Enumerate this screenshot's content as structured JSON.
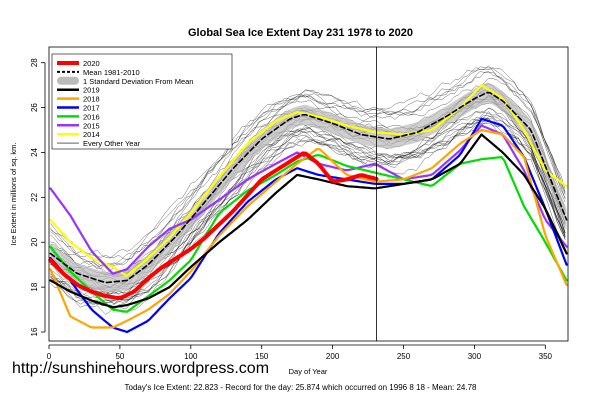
{
  "chart_data": {
    "type": "line",
    "title": "Global Sea Ice Extent Day 231 1978 to 2020",
    "xlabel": "Day of Year",
    "ylabel": "Ice Extent in millions of sq. km.",
    "xlim": [
      0,
      366
    ],
    "ylim": [
      15.6,
      28.7
    ],
    "xticks": [
      0,
      50,
      100,
      150,
      200,
      250,
      300,
      350
    ],
    "yticks": [
      16,
      18,
      20,
      22,
      24,
      26,
      28
    ],
    "marker_day": 231,
    "legend_position": "top-left",
    "legend": [
      {
        "label": "2020",
        "style": "thick-red"
      },
      {
        "label": "Mean 1981-2010",
        "style": "dashed-black"
      },
      {
        "label": "1 Standard Deviation From Mean",
        "style": "gray-band"
      },
      {
        "label": "2019",
        "style": "black"
      },
      {
        "label": "2018",
        "style": "orange"
      },
      {
        "label": "2017",
        "style": "blue"
      },
      {
        "label": "2016",
        "style": "green"
      },
      {
        "label": "2015",
        "style": "purple"
      },
      {
        "label": "2014",
        "style": "yellow"
      },
      {
        "label": "Every Other Year",
        "style": "thin-black"
      }
    ],
    "series": [
      {
        "name": "2020",
        "color": "#ff0000",
        "x": [
          1,
          10,
          20,
          30,
          40,
          50,
          60,
          70,
          80,
          90,
          100,
          110,
          120,
          130,
          140,
          150,
          160,
          170,
          180,
          190,
          200,
          210,
          220,
          231
        ],
        "values": [
          19.2,
          18.6,
          18.1,
          17.8,
          17.6,
          17.5,
          17.8,
          18.4,
          18.9,
          19.3,
          19.7,
          20.2,
          20.8,
          21.4,
          22.1,
          22.8,
          23.2,
          23.6,
          24.0,
          23.5,
          22.7,
          22.8,
          23.0,
          22.82
        ]
      },
      {
        "name": "Mean 1981-2010",
        "color": "#000000",
        "x": [
          1,
          20,
          40,
          55,
          70,
          90,
          110,
          130,
          150,
          170,
          180,
          200,
          220,
          240,
          260,
          280,
          300,
          310,
          320,
          340,
          365
        ],
        "values": [
          19.5,
          18.6,
          18.2,
          18.3,
          19.0,
          20.3,
          21.8,
          23.3,
          24.6,
          25.5,
          25.7,
          25.3,
          24.8,
          24.6,
          24.9,
          25.6,
          26.4,
          26.7,
          26.3,
          25.0,
          21.0
        ]
      },
      {
        "name": "2019",
        "color": "#000000",
        "x": [
          1,
          15,
          30,
          45,
          55,
          70,
          85,
          100,
          120,
          140,
          160,
          175,
          190,
          210,
          230,
          250,
          270,
          290,
          305,
          320,
          335,
          350,
          365
        ],
        "values": [
          18.3,
          17.8,
          17.4,
          17.1,
          17.2,
          17.5,
          18.0,
          18.9,
          20.0,
          21.0,
          22.2,
          23.0,
          22.8,
          22.5,
          22.4,
          22.6,
          22.8,
          23.5,
          24.8,
          24.0,
          23.0,
          21.5,
          19.5
        ]
      },
      {
        "name": "2018",
        "color": "#ffa500",
        "x": [
          1,
          15,
          30,
          45,
          55,
          70,
          85,
          100,
          120,
          140,
          160,
          175,
          190,
          210,
          230,
          250,
          270,
          290,
          305,
          320,
          335,
          350,
          365
        ],
        "values": [
          18.8,
          16.7,
          16.2,
          16.2,
          16.5,
          17.0,
          17.7,
          18.7,
          20.3,
          21.6,
          22.7,
          23.5,
          24.2,
          23.0,
          22.7,
          22.8,
          23.3,
          24.4,
          25.0,
          24.8,
          23.8,
          20.3,
          18.1
        ]
      },
      {
        "name": "2017",
        "color": "#0000ff",
        "x": [
          1,
          15,
          30,
          45,
          55,
          70,
          85,
          100,
          120,
          140,
          160,
          175,
          190,
          210,
          230,
          250,
          270,
          290,
          305,
          320,
          335,
          350,
          365
        ],
        "values": [
          19.3,
          18.3,
          17.0,
          16.2,
          16.0,
          16.5,
          17.5,
          18.4,
          20.4,
          21.8,
          22.8,
          23.3,
          23.0,
          22.8,
          22.6,
          22.6,
          22.8,
          23.9,
          25.5,
          25.2,
          23.8,
          21.5,
          19.0
        ]
      },
      {
        "name": "2016",
        "color": "#00dd00",
        "x": [
          1,
          15,
          30,
          45,
          55,
          70,
          85,
          100,
          120,
          140,
          160,
          175,
          190,
          210,
          230,
          250,
          270,
          290,
          305,
          320,
          335,
          350,
          365
        ],
        "values": [
          19.8,
          18.7,
          17.8,
          17.0,
          16.9,
          17.6,
          18.3,
          19.2,
          21.3,
          22.3,
          23.0,
          23.6,
          23.9,
          23.4,
          23.1,
          22.8,
          22.5,
          23.5,
          23.7,
          23.8,
          21.6,
          20.0,
          18.3
        ]
      },
      {
        "name": "2015",
        "color": "#9933ff",
        "x": [
          1,
          15,
          30,
          45,
          55,
          70,
          85,
          100,
          120,
          140,
          160,
          175,
          190,
          210,
          230,
          250,
          270,
          290,
          305,
          320,
          335,
          350,
          365
        ],
        "values": [
          22.4,
          21.2,
          19.6,
          18.6,
          18.8,
          19.8,
          20.6,
          21.0,
          21.9,
          22.8,
          23.5,
          24.0,
          23.5,
          23.2,
          23.5,
          22.8,
          23.0,
          24.1,
          25.2,
          24.8,
          23.2,
          21.0,
          19.8
        ]
      },
      {
        "name": "2014",
        "color": "#ffff00",
        "x": [
          1,
          15,
          30,
          45,
          55,
          70,
          85,
          100,
          120,
          140,
          160,
          175,
          190,
          210,
          230,
          250,
          270,
          290,
          305,
          320,
          335,
          350,
          365
        ],
        "values": [
          21.0,
          20.0,
          19.3,
          18.9,
          18.5,
          19.3,
          20.2,
          21.3,
          22.9,
          24.4,
          25.4,
          25.8,
          25.6,
          25.2,
          24.9,
          24.8,
          25.0,
          26.0,
          27.0,
          26.4,
          25.0,
          23.2,
          22.5
        ]
      }
    ]
  },
  "footer": {
    "watermark": "http://sunshinehours.wordpress.com",
    "summary": "Today's Ice Extent: 22.823  - Record for the day: 25.874 which occurred on 1996 8 18  - Mean: 24.78"
  }
}
